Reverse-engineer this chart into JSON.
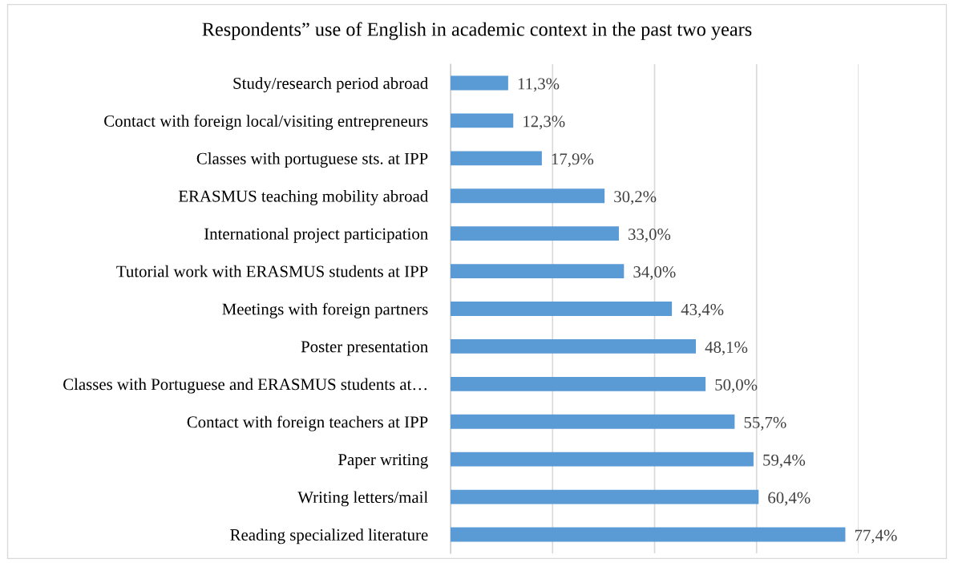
{
  "chart_data": {
    "type": "bar",
    "orientation": "horizontal",
    "title": "Respondents” use of English in academic context in the past two years",
    "categories": [
      "Study/research period abroad",
      "Contact with foreign local/visiting entrepreneurs",
      "Classes with portuguese sts. at IPP",
      "ERASMUS teaching mobility abroad",
      "International project participation",
      "Tutorial work with ERASMUS students at IPP",
      "Meetings with foreign partners",
      "Poster presentation",
      "Classes with Portuguese and ERASMUS students at…",
      "Contact with foreign teachers at IPP",
      "Paper writing",
      "Writing letters/mail",
      "Reading specialized literature"
    ],
    "values": [
      11.3,
      12.3,
      17.9,
      30.2,
      33.0,
      34.0,
      43.4,
      48.1,
      50.0,
      55.7,
      59.4,
      60.4,
      77.4
    ],
    "value_labels": [
      "11,3%",
      "12,3%",
      "17,9%",
      "30,2%",
      "33,0%",
      "34,0%",
      "43,4%",
      "48,1%",
      "50,0%",
      "55,7%",
      "59,4%",
      "60,4%",
      "77,4%"
    ],
    "color": "#5b9bd5",
    "xlim": [
      0,
      80
    ],
    "xticks": [
      {
        "value": 0,
        "label": null
      },
      {
        "value": 20,
        "label": null
      },
      {
        "value": 40,
        "label": null
      },
      {
        "value": 60,
        "label": null
      },
      {
        "value": 80,
        "label": null
      }
    ],
    "tick_labels": "y",
    "grid": "x"
  }
}
